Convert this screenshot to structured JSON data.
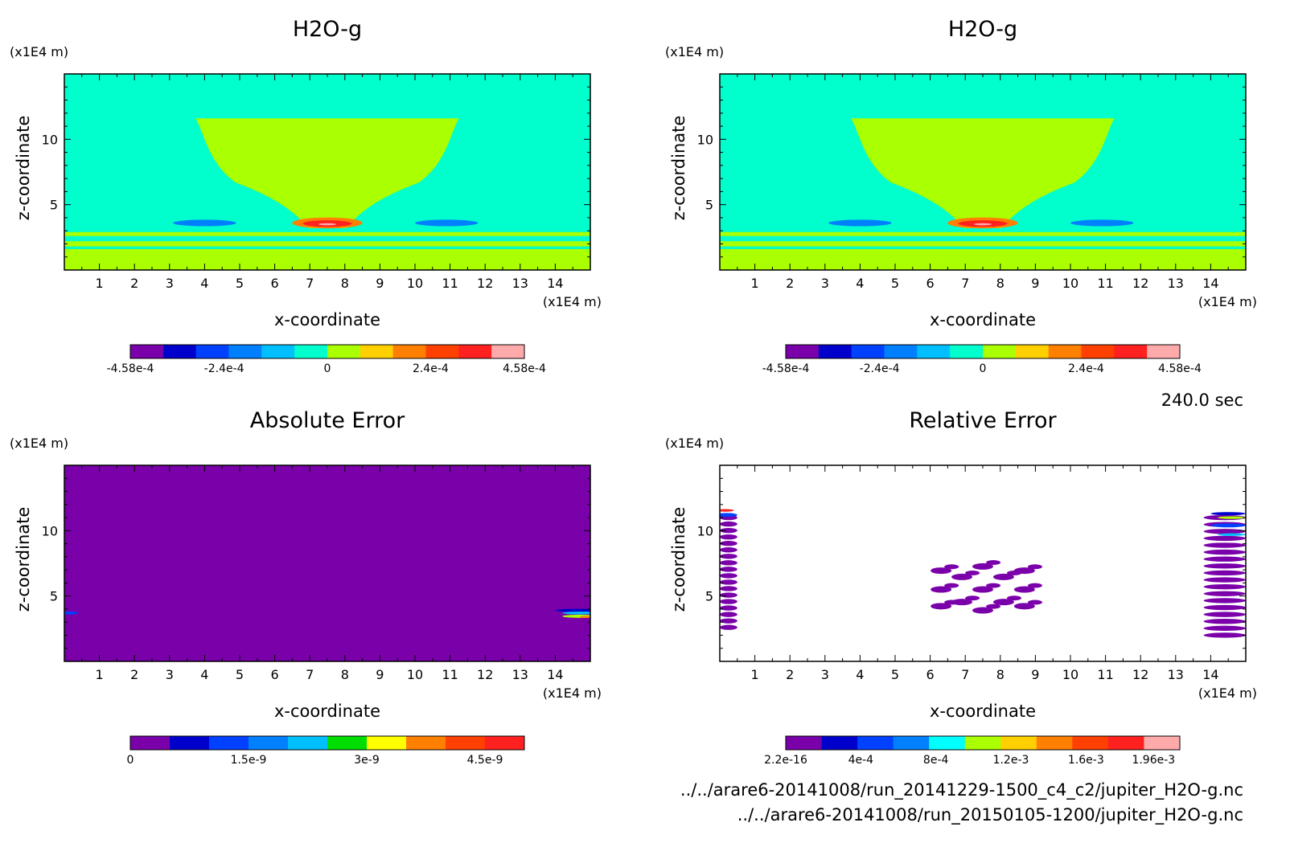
{
  "footer": {
    "time": "240.0 sec",
    "file1": "../../arare6-20141008/run_20141229-1500_c4_c2/jupiter_H2O-g.nc",
    "file2": "../../arare6-20141008/run_20150105-1200/jupiter_H2O-g.nc"
  },
  "chart_data": [
    {
      "type": "heatmap",
      "title": "H2O-g",
      "xlabel": "x-coordinate",
      "ylabel": "z-coordinate",
      "x_unit": "(x1E4 m)",
      "y_unit": "(x1E4 m)",
      "xlim": [
        0,
        15
      ],
      "ylim": [
        0,
        15
      ],
      "x_ticks": [
        1,
        2,
        3,
        4,
        5,
        6,
        7,
        8,
        9,
        10,
        11,
        12,
        13,
        14
      ],
      "y_ticks": [
        5,
        10
      ],
      "background_color": "#00ffcc",
      "colorbar": {
        "colors": [
          "#7a00aa",
          "#0000cc",
          "#0040ff",
          "#0080ff",
          "#00bfff",
          "#00ffcc",
          "#aaff00",
          "#ffd000",
          "#ff8000",
          "#ff4000",
          "#ff2020",
          "#ffaaaa"
        ],
        "tick_labels": [
          "-4.58e-4",
          "-2.4e-4",
          "0",
          "2.4e-4",
          "4.58e-4"
        ],
        "tick_values": [
          -0.000458,
          -0.00024,
          0,
          0.00024,
          0.000458
        ],
        "range": [
          -0.000458,
          0.000458
        ]
      },
      "features": [
        {
          "kind": "plume",
          "color": "#aaff00",
          "x_center": 7.5,
          "z_top": 11.6,
          "z_bottom": 3.2,
          "half_width_top": 3.3,
          "half_width_neck": 1.0
        },
        {
          "kind": "band",
          "color": "#aaff00",
          "z": [
            2.6,
            2.9
          ]
        },
        {
          "kind": "band",
          "color": "#aaff00",
          "z": [
            1.8,
            2.2
          ]
        },
        {
          "kind": "band",
          "color": "#aaff00",
          "z": [
            0,
            1.6
          ]
        },
        {
          "kind": "blob",
          "color": "#0080ff",
          "x": 4.0,
          "z": 3.6,
          "rx": 0.9,
          "rz": 0.25
        },
        {
          "kind": "blob",
          "color": "#0080ff",
          "x": 10.9,
          "z": 3.6,
          "rx": 0.9,
          "rz": 0.25
        },
        {
          "kind": "blob",
          "color": "#ff8000",
          "x": 7.5,
          "z": 3.6,
          "rx": 1.0,
          "rz": 0.42
        },
        {
          "kind": "blob",
          "color": "#ff2020",
          "x": 7.5,
          "z": 3.55,
          "rx": 0.7,
          "rz": 0.25
        },
        {
          "kind": "blob",
          "color": "#ffaaaa",
          "x": 7.5,
          "z": 3.5,
          "rx": 0.25,
          "rz": 0.08
        }
      ]
    },
    {
      "type": "heatmap",
      "title": "H2O-g",
      "xlabel": "x-coordinate",
      "ylabel": "z-coordinate",
      "x_unit": "(x1E4 m)",
      "y_unit": "(x1E4 m)",
      "xlim": [
        0,
        15
      ],
      "ylim": [
        0,
        15
      ],
      "x_ticks": [
        1,
        2,
        3,
        4,
        5,
        6,
        7,
        8,
        9,
        10,
        11,
        12,
        13,
        14
      ],
      "y_ticks": [
        5,
        10
      ],
      "background_color": "#00ffcc",
      "colorbar": {
        "colors": [
          "#7a00aa",
          "#0000cc",
          "#0040ff",
          "#0080ff",
          "#00bfff",
          "#00ffcc",
          "#aaff00",
          "#ffd000",
          "#ff8000",
          "#ff4000",
          "#ff2020",
          "#ffaaaa"
        ],
        "tick_labels": [
          "-4.58e-4",
          "-2.4e-4",
          "0",
          "2.4e-4",
          "4.58e-4"
        ],
        "tick_values": [
          -0.000458,
          -0.00024,
          0,
          0.00024,
          0.000458
        ],
        "range": [
          -0.000458,
          0.000458
        ]
      },
      "features": [
        {
          "kind": "plume",
          "color": "#aaff00",
          "x_center": 7.5,
          "z_top": 11.6,
          "z_bottom": 3.2,
          "half_width_top": 3.3,
          "half_width_neck": 1.0
        },
        {
          "kind": "band",
          "color": "#aaff00",
          "z": [
            2.6,
            2.9
          ]
        },
        {
          "kind": "band",
          "color": "#aaff00",
          "z": [
            1.8,
            2.2
          ]
        },
        {
          "kind": "band",
          "color": "#aaff00",
          "z": [
            0,
            1.6
          ]
        },
        {
          "kind": "blob",
          "color": "#0080ff",
          "x": 4.0,
          "z": 3.6,
          "rx": 0.9,
          "rz": 0.25
        },
        {
          "kind": "blob",
          "color": "#0080ff",
          "x": 10.9,
          "z": 3.6,
          "rx": 0.9,
          "rz": 0.25
        },
        {
          "kind": "blob",
          "color": "#ff8000",
          "x": 7.5,
          "z": 3.6,
          "rx": 1.0,
          "rz": 0.42
        },
        {
          "kind": "blob",
          "color": "#ff2020",
          "x": 7.5,
          "z": 3.55,
          "rx": 0.7,
          "rz": 0.25
        },
        {
          "kind": "blob",
          "color": "#ffaaaa",
          "x": 7.5,
          "z": 3.5,
          "rx": 0.25,
          "rz": 0.08
        }
      ]
    },
    {
      "type": "heatmap",
      "title": "Absolute Error",
      "xlabel": "x-coordinate",
      "ylabel": "z-coordinate",
      "x_unit": "(x1E4 m)",
      "y_unit": "(x1E4 m)",
      "xlim": [
        0,
        15
      ],
      "ylim": [
        0,
        15
      ],
      "x_ticks": [
        1,
        2,
        3,
        4,
        5,
        6,
        7,
        8,
        9,
        10,
        11,
        12,
        13,
        14
      ],
      "y_ticks": [
        5,
        10
      ],
      "background_color": "#7a00aa",
      "colorbar": {
        "colors": [
          "#7a00aa",
          "#0000cc",
          "#0040ff",
          "#0080ff",
          "#00bfff",
          "#00dd00",
          "#ffff00",
          "#ff8000",
          "#ff4000",
          "#ff2020"
        ],
        "tick_labels": [
          "0",
          "1.5e-9",
          "3e-9",
          "4.5e-9"
        ],
        "tick_values": [
          0,
          1.5e-09,
          3e-09,
          4.5e-09
        ],
        "range": [
          0,
          5e-09
        ]
      },
      "features": [
        {
          "kind": "blob",
          "color": "#0040ff",
          "x": 0.1,
          "z": 3.7,
          "rx": 0.3,
          "rz": 0.12
        },
        {
          "kind": "blob",
          "color": "#0000cc",
          "x": 14.6,
          "z": 3.9,
          "rx": 0.6,
          "rz": 0.12
        },
        {
          "kind": "blob",
          "color": "#00bfff",
          "x": 14.7,
          "z": 3.7,
          "rx": 0.5,
          "rz": 0.1
        },
        {
          "kind": "blob",
          "color": "#aaff00",
          "x": 14.7,
          "z": 3.45,
          "rx": 0.5,
          "rz": 0.12
        },
        {
          "kind": "blob",
          "color": "#ff8000",
          "x": 14.85,
          "z": 3.4,
          "rx": 0.15,
          "rz": 0.08
        }
      ]
    },
    {
      "type": "heatmap",
      "title": "Relative Error",
      "xlabel": "x-coordinate",
      "ylabel": "z-coordinate",
      "x_unit": "(x1E4 m)",
      "y_unit": "(x1E4 m)",
      "xlim": [
        0,
        15
      ],
      "ylim": [
        0,
        15
      ],
      "x_ticks": [
        1,
        2,
        3,
        4,
        5,
        6,
        7,
        8,
        9,
        10,
        11,
        12,
        13,
        14
      ],
      "y_ticks": [
        5,
        10
      ],
      "background_color": "#ffffff",
      "colorbar": {
        "colors": [
          "#7a00aa",
          "#0000cc",
          "#0040ff",
          "#0080ff",
          "#00ffff",
          "#aaff00",
          "#ffd000",
          "#ff8000",
          "#ff4000",
          "#ff2020",
          "#ffaaaa"
        ],
        "tick_labels": [
          "2.2e-16",
          "4e-4",
          "8e-4",
          "1.2e-3",
          "1.6e-3",
          "1.96e-3"
        ],
        "tick_values": [
          2.2e-16,
          0.0004,
          0.0008,
          0.0012,
          0.0016,
          0.00196
        ],
        "range": [
          2.2e-16,
          0.0021
        ]
      },
      "features": [
        {
          "kind": "stripes",
          "color": "#7a00aa",
          "x_from": 0,
          "x_to": 0.5,
          "z_from": 2.6,
          "z_to": 11.0
        },
        {
          "kind": "stripes",
          "color": "#7a00aa",
          "x_from": 13.8,
          "x_to": 15,
          "z_from": 2.0,
          "z_to": 11.0
        },
        {
          "kind": "blob",
          "color": "#0040ff",
          "x": 0.2,
          "z": 11.2,
          "rx": 0.3,
          "rz": 0.15
        },
        {
          "kind": "blob",
          "color": "#ff2020",
          "x": 0.15,
          "z": 11.55,
          "rx": 0.25,
          "rz": 0.1
        },
        {
          "kind": "blob",
          "color": "#0000cc",
          "x": 14.5,
          "z": 11.3,
          "rx": 0.5,
          "rz": 0.12
        },
        {
          "kind": "blob",
          "color": "#aaff00",
          "x": 14.6,
          "z": 11.0,
          "rx": 0.4,
          "rz": 0.1
        },
        {
          "kind": "blob",
          "color": "#0040ff",
          "x": 14.5,
          "z": 10.4,
          "rx": 0.5,
          "rz": 0.15
        },
        {
          "kind": "blob",
          "color": "#00bfff",
          "x": 14.6,
          "z": 9.7,
          "rx": 0.4,
          "rz": 0.1
        },
        {
          "kind": "cluster",
          "color": "#7a00aa",
          "x_center": 7.5,
          "z_center": 5.5,
          "rx": 1.4,
          "rz": 2.0
        }
      ]
    }
  ]
}
